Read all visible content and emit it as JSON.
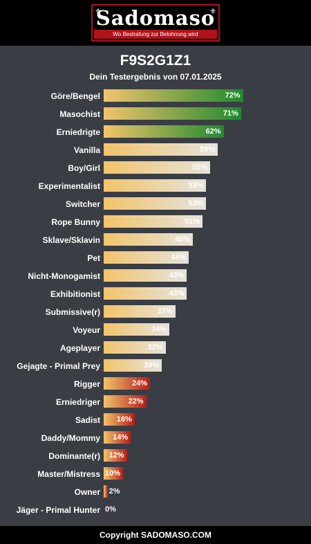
{
  "logo": {
    "wordmark": "Sadomaso",
    "tagline": "Wo Bestrafung zur Belohnung wird",
    "ornament": "⚜"
  },
  "header": {
    "title": "F9S2G1Z1",
    "subtitle": "Dein Testergebnis von 07.01.2025"
  },
  "footer": {
    "copyright": "Copyright SADOMASO.COM"
  },
  "colors": {
    "background": "#3a3d44",
    "header": "#000000",
    "brand_red": "#b0131a",
    "bar_start": "#f2c46a",
    "high_end": "#1f8a2f",
    "mid_end": "#e6e3dc",
    "low_end": "#b51e1a"
  },
  "chart_data": {
    "type": "bar",
    "orientation": "horizontal",
    "title": "F9S2G1Z1",
    "subtitle": "Dein Testergebnis von 07.01.2025",
    "unit": "%",
    "xlim": [
      0,
      100
    ],
    "grid": false,
    "categories": [
      "Göre/Bengel",
      "Masochist",
      "Erniedrigte",
      "Vanilla",
      "Boy/Girl",
      "Experimentalist",
      "Switcher",
      "Rope Bunny",
      "Sklave/Sklavin",
      "Pet",
      "Nicht-Monogamist",
      "Exhibitionist",
      "Submissive(r)",
      "Voyeur",
      "Ageplayer",
      "Gejagte - Primal Prey",
      "Rigger",
      "Erniedriger",
      "Sadist",
      "Daddy/Mommy",
      "Dominante(r)",
      "Master/Mistress",
      "Owner",
      "Jäger - Primal Hunter"
    ],
    "values": [
      72,
      71,
      62,
      59,
      55,
      53,
      53,
      51,
      46,
      44,
      43,
      43,
      37,
      34,
      32,
      30,
      24,
      22,
      16,
      14,
      12,
      10,
      2,
      0
    ],
    "value_labels": [
      "72%",
      "71%",
      "62%",
      "59%",
      "55%",
      "53%",
      "53%",
      "51%",
      "46%",
      "44%",
      "43%",
      "43%",
      "37%",
      "34%",
      "32%",
      "30%",
      "24%",
      "22%",
      "16%",
      "14%",
      "12%",
      "10%",
      "2%",
      "0%"
    ],
    "bar_styles": [
      "high",
      "high",
      "high",
      "mid",
      "mid",
      "mid",
      "mid",
      "mid",
      "mid",
      "mid",
      "mid",
      "mid",
      "mid",
      "mid",
      "mid",
      "mid",
      "low",
      "low",
      "low",
      "low",
      "low",
      "low",
      "low",
      "low"
    ]
  }
}
